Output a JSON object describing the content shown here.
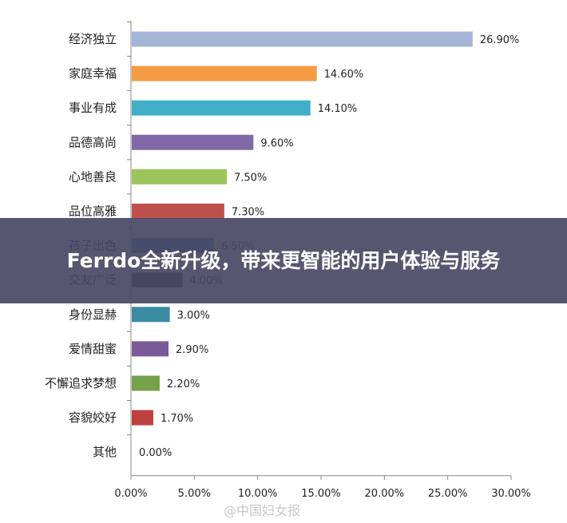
{
  "chart_data": {
    "type": "bar",
    "orientation": "horizontal",
    "categories": [
      "经济独立",
      "家庭幸福",
      "事业有成",
      "品德高尚",
      "心地善良",
      "品位高雅",
      "孩子出色",
      "交友广泛",
      "身份显赫",
      "爱情甜蜜",
      "不懈追求梦想",
      "容貌姣好",
      "其他"
    ],
    "values": [
      26.9,
      14.6,
      14.1,
      9.6,
      7.5,
      7.3,
      6.5,
      4.0,
      3.0,
      2.9,
      2.2,
      1.7,
      0.0
    ],
    "value_labels": [
      "26.90%",
      "14.60%",
      "14.10%",
      "9.60%",
      "7.50%",
      "7.30%",
      "6.50%",
      "4.00%",
      "3.00%",
      "2.90%",
      "2.20%",
      "1.70%",
      "0.00%"
    ],
    "colors": [
      "#a5b5d7",
      "#f59a45",
      "#3fb0c8",
      "#8069a6",
      "#9dc45a",
      "#c0504d",
      "#4f81bd",
      "#4d2f2f",
      "#3a8aa3",
      "#7a5a98",
      "#76a04a",
      "#bf3e3e",
      "#999999"
    ],
    "x_ticks": [
      "0.00%",
      "5.00%",
      "10.00%",
      "15.00%",
      "20.00%",
      "25.00%",
      "30.00%"
    ],
    "xlim": [
      0,
      30
    ],
    "grid": false
  },
  "banner": {
    "title": "Ferrdo全新升级，带来更智能的用户体验与服务"
  },
  "watermark": {
    "text": "@中国妇女报"
  }
}
